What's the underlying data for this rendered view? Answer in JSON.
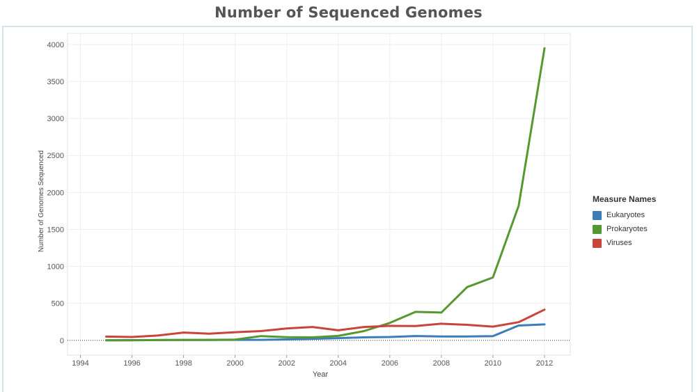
{
  "chart_data": {
    "type": "line",
    "title": "Number of Sequenced Genomes",
    "xlabel": "Year",
    "ylabel": "Number of Genomes Sequenced",
    "xlim": [
      1993.5,
      2013
    ],
    "ylim": [
      -200,
      4150
    ],
    "x_ticks": [
      1994,
      1996,
      1998,
      2000,
      2002,
      2004,
      2006,
      2008,
      2010,
      2012
    ],
    "y_ticks": [
      0,
      500,
      1000,
      1500,
      2000,
      2500,
      3000,
      3500,
      4000
    ],
    "grid": true,
    "zero_line": "dotted",
    "x": [
      1995,
      1996,
      1997,
      1998,
      1999,
      2000,
      2001,
      2002,
      2003,
      2004,
      2005,
      2006,
      2007,
      2008,
      2009,
      2010,
      2011,
      2012
    ],
    "series": [
      {
        "name": "Eukaryotes",
        "color": "#3a7db8",
        "values": [
          1,
          2,
          3,
          5,
          4,
          6,
          6,
          12,
          20,
          30,
          40,
          45,
          58,
          52,
          52,
          56,
          200,
          215
        ]
      },
      {
        "name": "Prokaryotes",
        "color": "#56982f",
        "values": [
          0,
          1,
          3,
          5,
          6,
          10,
          57,
          42,
          40,
          60,
          125,
          235,
          385,
          375,
          720,
          850,
          1820,
          3950
        ]
      },
      {
        "name": "Viruses",
        "color": "#c9443b",
        "values": [
          50,
          45,
          65,
          105,
          90,
          110,
          125,
          160,
          180,
          135,
          180,
          195,
          193,
          225,
          210,
          185,
          245,
          415
        ]
      }
    ],
    "legend": {
      "title": "Measure Names",
      "position": "right"
    }
  }
}
